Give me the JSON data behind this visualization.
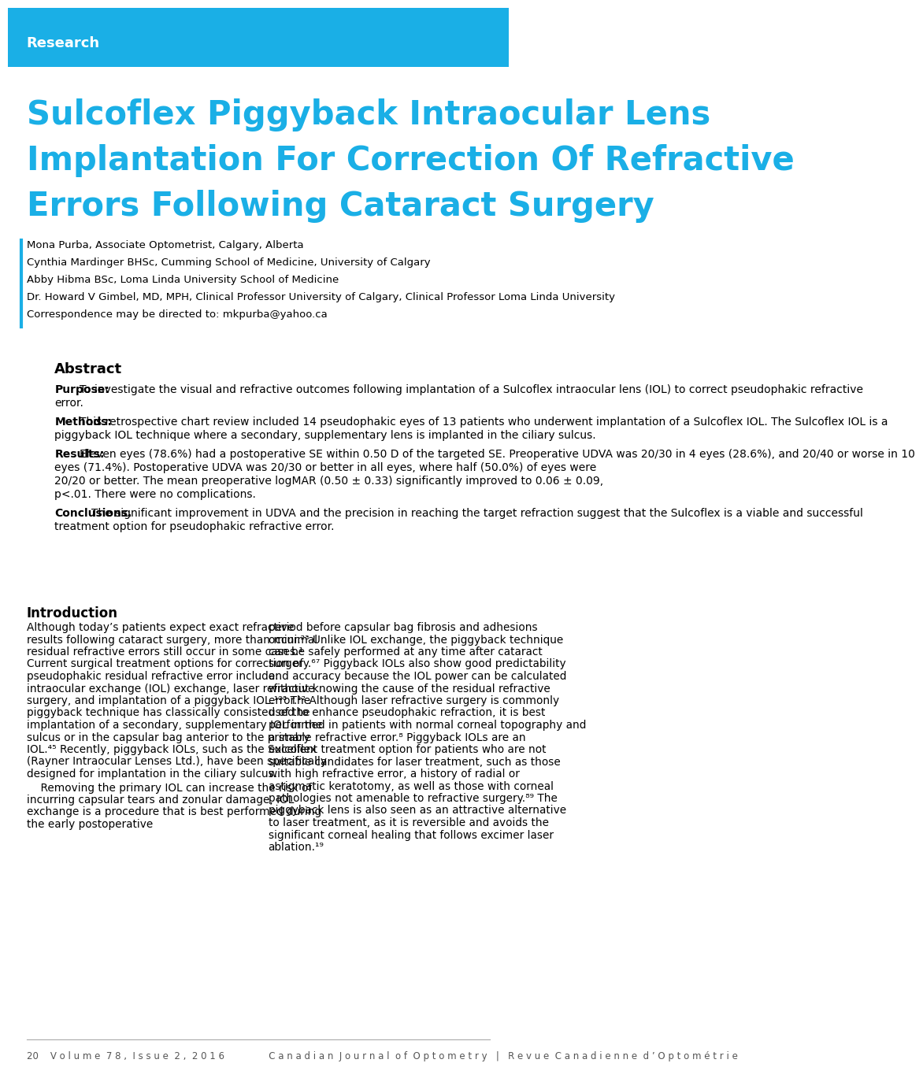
{
  "header_color": "#1AAFE6",
  "header_text": "Research",
  "header_text_color": "#FFFFFF",
  "title_color": "#1AAFE6",
  "title_lines": [
    "Sulcoflex Piggyback Intraocular Lens",
    "Implantation For Correction Of Refractive",
    "Errors Following Cataract Surgery"
  ],
  "authors": [
    "Mona Purba, Associate Optometrist, Calgary, Alberta",
    "Cynthia Mardinger BHSc, Cumming School of Medicine, University of Calgary",
    "Abby Hibma BSc, Loma Linda University School of Medicine",
    "Dr. Howard V Gimbel, MD, MPH, Clinical Professor University of Calgary, Clinical Professor Loma Linda University",
    "Correspondence may be directed to: mkpurba@yahoo.ca"
  ],
  "abstract_title": "Abstract",
  "abstract_purpose_label": "Purpose:",
  "abstract_purpose": "To investigate the visual and refractive outcomes following implantation of a Sulcoflex intraocular lens (IOL) to correct pseudophakic refractive error.",
  "abstract_methods_label": "Methods:",
  "abstract_methods": "This retrospective chart review included 14 pseudophakic eyes of 13 patients who underwent implantation of a Sulcoflex IOL. The Sulcoflex IOL is a piggyback IOL technique where a secondary, supplementary lens is implanted in the ciliary sulcus.",
  "abstract_results_label": "Results:",
  "abstract_results": "Eleven eyes (78.6%) had a postoperative SE within 0.50 D of the targeted SE. Preoperative UDVA was 20/30 in 4 eyes (28.6%), and 20/40 or worse in 10 eyes (71.4%). Postoperative UDVA was 20/30 or better in all eyes, where half (50.0%) of eyes were 20/20 or better. The mean preoperative logMAR (0.50 ± 0.33) significantly improved to 0.06 ± 0.09, p<.01. There were no complications.",
  "abstract_conclusions_label": "Conclusions.",
  "abstract_conclusions": " The significant improvement in UDVA and the precision in reaching the target refraction suggest that the Sulcoflex is a viable and successful treatment option for pseudophakic refractive error.",
  "intro_title": "Introduction",
  "intro_col1": "Although today’s patients expect exact refractive results following cataract surgery, more than minimal residual refractive errors still occur in some cases.¹ Current surgical treatment options for correction of pseudophakic residual refractive error include: intraocular exchange (IOL) exchange, laser refractive surgery, and implantation of a piggyback IOL.¹²³ The piggyback technique has classically consisted of the implantation of a secondary, supplementary IOL in the sulcus or in the capsular bag anterior to the primary IOL.⁴⁵ Recently, piggyback IOLs, such as the Sulcoflex (Rayner Intraocular Lenses Ltd.), have been specifically designed for implantation in the ciliary sulcus.\n    Removing the primary IOL can increase the risk of incurring capsular tears and zonular damage, IOL exchange is a procedure that is best performed during the early postoperative",
  "intro_col2": "period before capsular bag fibrosis and adhesions occur.²³ Unlike IOL exchange, the piggyback technique can be safely performed at any time after cataract surgery.⁶⁷ Piggyback IOLs also show good predictability and accuracy because the IOL power can be calculated without knowing the cause of the residual refractive error.¹² Although laser refractive surgery is commonly used to enhance pseudophakic refraction, it is best performed in patients with normal corneal topography and a stable refractive error.⁸ Piggyback IOLs are an excellent treatment option for patients who are not suitable candidates for laser treatment, such as those with high refractive error, a history of radial or astigmatic keratotomy, as well as those with corneal pathologies not amenable to refractive surgery.⁸⁹ The piggyback lens is also seen as an attractive alternative to laser treatment, as it is reversible and avoids the significant corneal healing that follows excimer laser ablation.¹⁹",
  "footer_text": "20    V o l u m e  7 8 ,  I s s u e  2 ,  2 0 1 6               C a n a d i a n  J o u r n a l  o f  O p t o m e t r y   |   R e v u e  C a n a d i e n n e  d ’ O p t o m é t r i e",
  "bg_color": "#FFFFFF",
  "body_text_color": "#000000",
  "accent_bar_color": "#1AAFE6"
}
